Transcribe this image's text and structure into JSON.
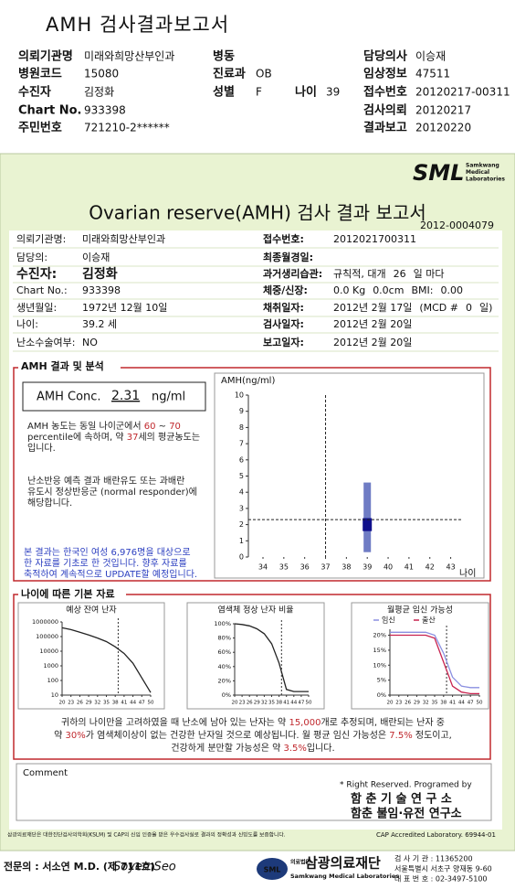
{
  "header": {
    "title": "AMH 검사결과보고서",
    "fields": [
      {
        "label": "의뢰기관명",
        "value": "미래와희망산부인과"
      },
      {
        "label": "병동"
      },
      {
        "label": "담당의사",
        "value": "이승재"
      },
      {
        "label": "병원코드",
        "value": "15080"
      },
      {
        "label": "진료과",
        "value": "OB"
      },
      {
        "label": "임상정보",
        "value": "47511"
      },
      {
        "label": "수진자",
        "value": "김정화"
      },
      {
        "label": "성별",
        "value": "F"
      },
      {
        "label": "나이",
        "value": "39"
      },
      {
        "label": "접수번호",
        "value": "20120217-00311"
      },
      {
        "label": "Chart No.",
        "value": "933398"
      },
      {
        "label": "검사의뢰",
        "value": "20120217"
      },
      {
        "label": "주민번호",
        "value": "721210-2******"
      },
      {
        "label": "결과보고",
        "value": "20120220"
      }
    ]
  },
  "report": {
    "logo": "SML",
    "logo_sub": [
      "Samkwang",
      "Medical",
      "Laboratories"
    ],
    "title": "Ovarian reserve(AMH) 검사 결과 보고서",
    "report_no": "2012-0004079",
    "left_info": [
      {
        "label": "의뢰기관명:",
        "value": "미래와희망산부인과"
      },
      {
        "label": "담당의:",
        "value": "이승재"
      },
      {
        "label": "수진자:",
        "value": "김정화"
      },
      {
        "label": "Chart No.:",
        "value": "933398"
      },
      {
        "label": "생년월일:",
        "value": "1972년 12월 10일"
      },
      {
        "label": "나이:",
        "value": "39.2 세"
      },
      {
        "label": "난소수술여부:",
        "value": "NO"
      }
    ],
    "right_info": [
      {
        "label": "접수번호:",
        "value": "2012021700311"
      },
      {
        "label": "최종월경일:"
      },
      {
        "label": "과거생리습관:",
        "value": [
          "규칙적, 대개",
          "26",
          "일 마다"
        ]
      },
      {
        "label": "체중/신장:",
        "value": [
          "0.0 Kg",
          "0.0cm",
          "BMI:",
          "0.00"
        ]
      },
      {
        "label": "채취일자:",
        "value": [
          "2012년 2월 17일",
          "(MCD #",
          "0",
          "일)"
        ]
      },
      {
        "label": "검사일자:",
        "value": "2012년 2월 20일"
      },
      {
        "label": "보고일자:",
        "value": "2012년 2월 20일"
      }
    ],
    "amh_section": {
      "title": "AMH 결과 및 분석",
      "conc_label": "AMH Conc.",
      "conc_value": "2.31",
      "conc_unit": "ng/ml",
      "analysis": [
        [
          "AMH 농도는 동일 나이군에서 ",
          "60",
          " ~ ",
          "70"
        ],
        [
          "percentile에 속하며, 약 ",
          "37",
          "세의 평균농도는"
        ],
        [
          "입니다."
        ]
      ],
      "response": [
        [
          "난소반응 예측 결과 배란유도 또는 과배란"
        ],
        [
          "유도시 정상반응군 (normal responder)에"
        ],
        [
          "해당합니다."
        ]
      ],
      "basis": [
        [
          "본 결과는 한국인 여성 6,976명을 대상으로"
        ],
        [
          "한 자료를 기초로 한 것입니다. 향후 자료를"
        ],
        [
          "축적하여 계속적으로 UPDATE할 예정입니다."
        ]
      ]
    },
    "age_section": {
      "title": "나이에 따른 기본 자료",
      "summary": [
        [
          "귀하의 나이만을 고려하였을 때 난소에 남아 있는 난자는 약 ",
          "15,000",
          "개로 추정되며, 배란되는 난자 중"
        ],
        [
          "약 ",
          "30%",
          "가 염색체이상이 없는 건강한 난자일 것으로 예상됩니다. 월 평균 임신 가능성은 ",
          "7.5%",
          " 정도이고,"
        ],
        [
          "건강하게 분만할 가능성은 약 ",
          "3.5%",
          "입니다."
        ]
      ]
    },
    "comment_label": "Comment",
    "credits": [
      "* Right Reserved. Programed by",
      "함 춘 기 술 연 구 소",
      "함춘 불임·유전 연구소"
    ],
    "certification": "삼광의료재단은 대한진단검사의학회(KSLM) 및 CAP의 신임 인증을 받은 우수검사실로 결과의 정확성과 신빙도를 보증합니다.",
    "cap": "CAP Accredited Laboratory. 69944-01"
  },
  "footer": {
    "doctor": "전문의 : 서소연 M.D. (제 711호)",
    "signature": "SoyemSeo",
    "logo_mark": "SML",
    "org_prefix": "의료법인",
    "org_name": "삼광의료재단",
    "org_en": "Samkwang Medical Laboratories",
    "contact": [
      "검 사 기 관 : 11365200",
      "서울특별시 서초구 양재동 9-60",
      "대 표 번 호 : 02-3497-5100"
    ]
  },
  "chart_data": [
    {
      "type": "box",
      "title": "AMH(ng/ml)",
      "x_label": "나이",
      "xlim": [
        33.3,
        43.5
      ],
      "xticks": [
        34,
        35,
        36,
        37,
        38,
        39,
        40,
        41,
        42,
        43
      ],
      "ylim": [
        0,
        10
      ],
      "yticks": [
        0,
        1,
        2,
        3,
        4,
        5,
        6,
        7,
        8,
        9,
        10
      ],
      "box": {
        "x": 39,
        "whislo": 0.3,
        "q1": 1.6,
        "q3": 2.4,
        "whishi": 4.6
      },
      "whisker_color": "#6f7cc4",
      "box_color": "#10108c",
      "patient_value": 2.31,
      "reference_age": 37
    },
    {
      "type": "line",
      "title": "예상 잔여 난자",
      "log_scale": true,
      "x": [
        20,
        23,
        26,
        29,
        32,
        35,
        38,
        41,
        44,
        47,
        50
      ],
      "xlim": [
        20,
        50
      ],
      "xticks": [
        20,
        23,
        26,
        29,
        32,
        35,
        38,
        41,
        44,
        47,
        50
      ],
      "ylim": [
        10,
        1000000
      ],
      "yticks": [
        10,
        100,
        1000,
        10000,
        100000,
        1000000
      ],
      "series": [
        {
          "color": "#222222",
          "values": [
            400000,
            300000,
            200000,
            130000,
            80000,
            45000,
            20000,
            7000,
            1500,
            150,
            15
          ]
        }
      ],
      "marker_age": 39
    },
    {
      "type": "line",
      "title": "염색체 정상 난자 비율",
      "x": [
        20,
        23,
        26,
        29,
        32,
        35,
        38,
        41,
        44,
        47,
        50
      ],
      "xlim": [
        20,
        50
      ],
      "xticks": [
        20,
        23,
        26,
        29,
        32,
        35,
        38,
        41,
        44,
        47,
        50
      ],
      "ylim": [
        0,
        100
      ],
      "yticks": [
        {
          "value": 0,
          "label": "0%"
        },
        {
          "value": 20,
          "label": "20%"
        },
        {
          "value": 40,
          "label": "40%"
        },
        {
          "value": 60,
          "label": "60%"
        },
        {
          "value": 80,
          "label": "80%"
        },
        {
          "value": 100,
          "label": "100%"
        }
      ],
      "series": [
        {
          "color": "#222222",
          "values": [
            100,
            99,
            97,
            93,
            86,
            72,
            45,
            8,
            5,
            5,
            5
          ]
        }
      ],
      "marker_age": 39
    },
    {
      "type": "line",
      "title": "월평균 임신 가능성",
      "x": [
        20,
        23,
        26,
        29,
        32,
        35,
        38,
        41,
        44,
        47,
        50
      ],
      "xlim": [
        20,
        50
      ],
      "xticks": [
        20,
        23,
        26,
        29,
        32,
        35,
        38,
        41,
        44,
        47,
        50
      ],
      "ylim": [
        0,
        22
      ],
      "yticks": [
        {
          "value": 0,
          "label": "0%"
        },
        {
          "value": 5,
          "label": "5%"
        },
        {
          "value": 10,
          "label": "10%"
        },
        {
          "value": 15,
          "label": "15%"
        },
        {
          "value": 20,
          "label": "20%"
        }
      ],
      "series": [
        {
          "name": "임신",
          "color": "#8a8fe0",
          "values": [
            21,
            21,
            21,
            21,
            21,
            20,
            14,
            6,
            3,
            2.5,
            2.5
          ]
        },
        {
          "name": "출산",
          "color": "#c8234f",
          "values": [
            20,
            20,
            20,
            20,
            20,
            19,
            11,
            3,
            1,
            0.5,
            0.5
          ]
        }
      ],
      "marker_age": 39
    }
  ]
}
